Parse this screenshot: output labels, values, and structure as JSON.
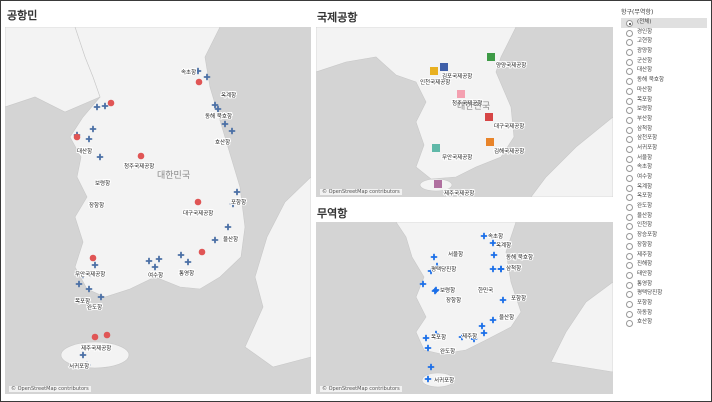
{
  "panels": {
    "port_map": {
      "title": "공항민"
    },
    "airport_map": {
      "title": "국제공항"
    },
    "trade_map": {
      "title": "무역항"
    }
  },
  "credit": "© OpenStreetMap contributors",
  "country_label": "대한민국",
  "legend": {
    "title": "항구(무역항)",
    "items": [
      "(전체)",
      "경인항",
      "고현항",
      "광양항",
      "군산항",
      "대산항",
      "동해 묵호항",
      "마산항",
      "목포항",
      "보령항",
      "부산항",
      "삼척항",
      "삼천포항",
      "서귀포항",
      "서울항",
      "속초항",
      "여수항",
      "옥계항",
      "옥포항",
      "완도항",
      "울산항",
      "인천항",
      "장승포항",
      "장항항",
      "제주항",
      "진해항",
      "태안항",
      "통영항",
      "평택당진항",
      "포항항",
      "하동항",
      "호산항"
    ],
    "selected_index": 0
  },
  "colors": {
    "land": "#f3f3f3",
    "sea": "#d4d4d4",
    "cross_port": "#4a6fa5",
    "cross_trade": "#1a6ee8",
    "dot": "#e05555"
  },
  "port_labels": [
    {
      "text": "속초항"
    },
    {
      "text": "옥계항"
    },
    {
      "text": "동해 묵호항"
    },
    {
      "text": "호산항"
    },
    {
      "text": "대산항"
    },
    {
      "text": "청주국제공항"
    },
    {
      "text": "대한민국"
    },
    {
      "text": "보령항"
    },
    {
      "text": "장항항"
    },
    {
      "text": "대구국제공항"
    },
    {
      "text": "포항항"
    },
    {
      "text": "울산항"
    },
    {
      "text": "무안국제공항"
    },
    {
      "text": "목포항"
    },
    {
      "text": "여수항"
    },
    {
      "text": "통영항"
    },
    {
      "text": "완도항"
    },
    {
      "text": "제주국제공항"
    },
    {
      "text": "서귀포항"
    }
  ],
  "airport_labels": [
    {
      "text": "양양국제공항",
      "color": "#3d9a46"
    },
    {
      "text": "김포국제공항",
      "color": "#3f5fa8"
    },
    {
      "text": "인천국제공항",
      "color": "#e8b020"
    },
    {
      "text": "청주국제공항",
      "color": "#f4a0b0"
    },
    {
      "text": "대구국제공항",
      "color": "#d64545"
    },
    {
      "text": "무안국제공항",
      "color": "#5fb8a8"
    },
    {
      "text": "김해국제공항",
      "color": "#e8842a"
    },
    {
      "text": "제주국제공항",
      "color": "#b070a0"
    }
  ],
  "trade_labels": [
    {
      "text": "서울항"
    },
    {
      "text": "속초항"
    },
    {
      "text": "옥계항"
    },
    {
      "text": "평택당진항"
    },
    {
      "text": "동해 묵호항"
    },
    {
      "text": "삼척항"
    },
    {
      "text": "한민국"
    },
    {
      "text": "보령항"
    },
    {
      "text": "장항항"
    },
    {
      "text": "포항항"
    },
    {
      "text": "울산항"
    },
    {
      "text": "목포항"
    },
    {
      "text": "제주항"
    },
    {
      "text": "완도항"
    },
    {
      "text": "서귀포항"
    }
  ]
}
